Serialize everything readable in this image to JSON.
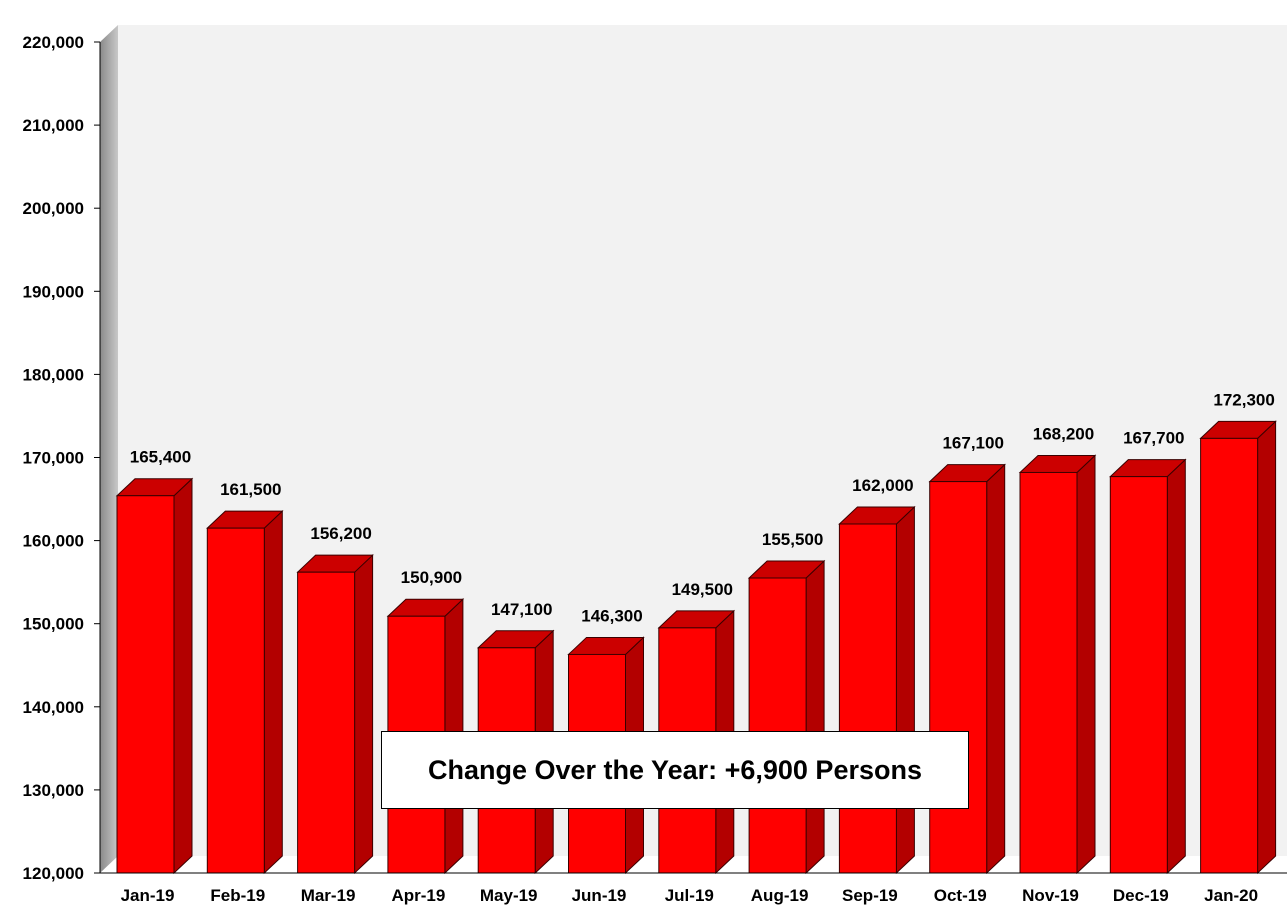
{
  "chart_data": {
    "type": "bar",
    "title": "",
    "xlabel": "",
    "ylabel": "",
    "categories": [
      "Jan-19",
      "Feb-19",
      "Mar-19",
      "Apr-19",
      "May-19",
      "Jun-19",
      "Jul-19",
      "Aug-19",
      "Sep-19",
      "Oct-19",
      "Nov-19",
      "Dec-19",
      "Jan-20"
    ],
    "values": [
      165400,
      161500,
      156200,
      150900,
      147100,
      146300,
      149500,
      155500,
      162000,
      167100,
      168200,
      167700,
      172300
    ],
    "value_labels": [
      "165,400",
      "161,500",
      "156,200",
      "150,900",
      "147,100",
      "146,300",
      "149,500",
      "155,500",
      "162,000",
      "167,100",
      "168,200",
      "167,700",
      "172,300"
    ],
    "ylim": [
      120000,
      220000
    ],
    "yticks": [
      120000,
      130000,
      140000,
      150000,
      160000,
      170000,
      180000,
      190000,
      200000,
      210000,
      220000
    ],
    "ytick_labels": [
      "120,000",
      "130,000",
      "140,000",
      "150,000",
      "160,000",
      "170,000",
      "180,000",
      "190,000",
      "200,000",
      "210,000",
      "220,000"
    ],
    "bar_color": "#ff0000",
    "bar_side_color": "#b30000",
    "bar_top_color": "#cc0000",
    "plot_background": "#f2f2f2",
    "grid": false,
    "legend": "none",
    "annotation": "Change Over the Year: +6,900 Persons"
  }
}
